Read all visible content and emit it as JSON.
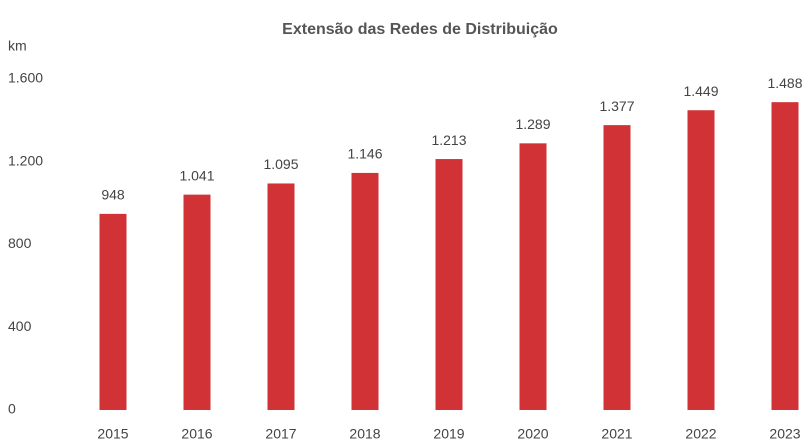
{
  "chart_data": {
    "type": "bar",
    "title": "Extensão das Redes de Distribuição",
    "y_label": "km",
    "categories": [
      "2015",
      "2016",
      "2017",
      "2018",
      "2019",
      "2020",
      "2021",
      "2022",
      "2023"
    ],
    "values": [
      948,
      1041,
      1095,
      1146,
      1213,
      1289,
      1377,
      1449,
      1488
    ],
    "value_labels": [
      "948",
      "1.041",
      "1.095",
      "1.146",
      "1.213",
      "1.289",
      "1.377",
      "1.449",
      "1.488"
    ],
    "color": "#d03235",
    "ylim": [
      0,
      1600
    ],
    "yticks": [
      0,
      400,
      800,
      {
        "value": 1200,
        "label": "1.200"
      },
      {
        "value": 1600,
        "label": "1.600"
      }
    ],
    "grid": false
  }
}
